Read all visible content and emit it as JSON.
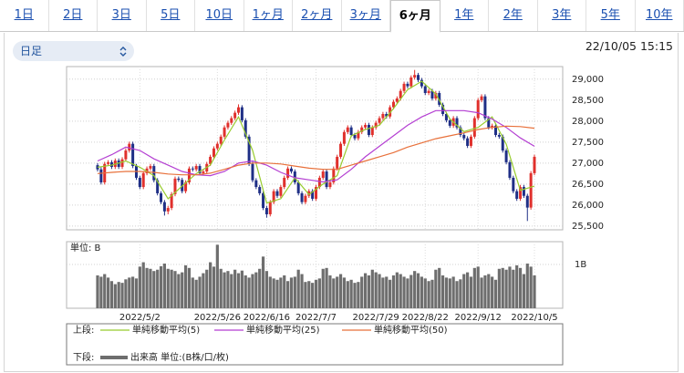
{
  "tabs": {
    "items": [
      "1日",
      "2日",
      "3日",
      "5日",
      "10日",
      "1ヶ月",
      "2ヶ月",
      "3ヶ月",
      "6ヶ月",
      "1年",
      "2年",
      "3年",
      "5年",
      "10年"
    ],
    "active": 8
  },
  "interval_select": "日足",
  "timestamp": "22/10/05 15:15",
  "chart_data": [
    {
      "type": "candlestick",
      "legend_title": "上段:",
      "grid": true,
      "up_color": "#e0302c",
      "down_color": "#1f2f86",
      "ylim": [
        25410,
        29300
      ],
      "yticks": [
        {
          "value": 25500,
          "label": "25,500"
        },
        {
          "value": 26000,
          "label": "26,000"
        },
        {
          "value": 26500,
          "label": "26,500"
        },
        {
          "value": 27000,
          "label": "27,000"
        },
        {
          "value": 27500,
          "label": "27,500"
        },
        {
          "value": 28000,
          "label": "28,000"
        },
        {
          "value": 28500,
          "label": "28,500"
        },
        {
          "value": 29000,
          "label": "29,000"
        }
      ],
      "categories": [
        null,
        null,
        null,
        null,
        null,
        null,
        null,
        null,
        null,
        null,
        null,
        null,
        "2022/5/2",
        null,
        null,
        null,
        null,
        null,
        null,
        null,
        null,
        null,
        null,
        null,
        null,
        null,
        null,
        null,
        null,
        null,
        null,
        null,
        null,
        null,
        "2022/5/26",
        null,
        null,
        null,
        null,
        null,
        null,
        null,
        null,
        null,
        null,
        null,
        null,
        null,
        "2022/6/16",
        null,
        null,
        null,
        null,
        null,
        null,
        null,
        null,
        null,
        null,
        null,
        null,
        null,
        "2022/7/7",
        null,
        null,
        null,
        null,
        null,
        null,
        null,
        null,
        null,
        null,
        null,
        null,
        null,
        null,
        null,
        null,
        "2022/7/29",
        null,
        null,
        null,
        null,
        null,
        null,
        null,
        null,
        null,
        null,
        null,
        null,
        null,
        "2022/8/22",
        null,
        null,
        null,
        null,
        null,
        null,
        null,
        null,
        null,
        null,
        null,
        null,
        null,
        null,
        "2022/9/12",
        null,
        null,
        null,
        null,
        null,
        null,
        null,
        null,
        null,
        null,
        null,
        null,
        null,
        null,
        null,
        "2022/10/5"
      ],
      "open": [
        26950,
        26850,
        26540,
        26980,
        27020,
        26910,
        27060,
        26910,
        27090,
        27300,
        27460,
        26930,
        26650,
        26430,
        26760,
        26870,
        26930,
        26590,
        26280,
        26070,
        25850,
        25930,
        26260,
        26630,
        26600,
        26330,
        26540,
        26870,
        26850,
        26930,
        26760,
        26800,
        26980,
        27150,
        27350,
        27460,
        27630,
        27850,
        27960,
        28070,
        28200,
        28330,
        28020,
        27630,
        26980,
        26590,
        26430,
        26280,
        25930,
        25780,
        26070,
        26330,
        26220,
        26430,
        26650,
        26870,
        26800,
        26540,
        26280,
        26070,
        26220,
        26330,
        26150,
        26430,
        26650,
        26800,
        26430,
        26540,
        26870,
        27150,
        27460,
        27740,
        27850,
        27670,
        27590,
        27740,
        27850,
        27910,
        27670,
        27850,
        27960,
        28070,
        28170,
        28110,
        28330,
        28460,
        28540,
        28720,
        28890,
        28830,
        29040,
        29100,
        28980,
        28830,
        28670,
        28720,
        28540,
        28670,
        28390,
        28170,
        28020,
        27890,
        28070,
        27850,
        27670,
        27590,
        27410,
        27630,
        28070,
        28500,
        28590,
        28070,
        27850,
        27890,
        27670,
        27630,
        27300,
        27020,
        26650,
        26330,
        26150,
        26430,
        26220,
        25940,
        26760
      ],
      "high": [
        27000,
        26900,
        27030,
        27070,
        27070,
        27110,
        27110,
        27140,
        27350,
        27510,
        27510,
        26980,
        26700,
        26810,
        26920,
        26980,
        26980,
        26640,
        26330,
        26120,
        25980,
        26310,
        26680,
        26680,
        26650,
        26590,
        26920,
        26920,
        26980,
        26980,
        26850,
        27030,
        27200,
        27400,
        27510,
        27680,
        27900,
        28010,
        28120,
        28250,
        28400,
        28380,
        28070,
        27680,
        27030,
        26640,
        26480,
        26330,
        25980,
        26120,
        26380,
        26380,
        26480,
        26700,
        26920,
        26920,
        26850,
        26590,
        26330,
        26270,
        26380,
        26380,
        26480,
        26700,
        26850,
        26850,
        26590,
        26920,
        27200,
        27510,
        27790,
        27900,
        27900,
        27720,
        27790,
        27900,
        27960,
        27960,
        27900,
        28010,
        28120,
        28220,
        28220,
        28380,
        28510,
        28590,
        28770,
        28940,
        28940,
        29090,
        29220,
        29150,
        29030,
        28880,
        28770,
        28770,
        28720,
        28720,
        28440,
        28220,
        28070,
        28120,
        28120,
        27900,
        27720,
        27640,
        27680,
        28120,
        28550,
        28640,
        28640,
        28120,
        27940,
        27940,
        27720,
        27680,
        27350,
        27070,
        26700,
        26380,
        26480,
        26480,
        26270,
        26810,
        27200
      ],
      "low": [
        26800,
        26490,
        26490,
        26930,
        26860,
        26860,
        26860,
        26860,
        27040,
        27250,
        26880,
        26600,
        26380,
        26380,
        26710,
        26820,
        26540,
        26230,
        26020,
        25750,
        25780,
        25880,
        26210,
        26550,
        26280,
        26280,
        26490,
        26800,
        26800,
        26710,
        26710,
        26750,
        26930,
        27100,
        27300,
        27410,
        27580,
        27800,
        27910,
        28020,
        28150,
        27970,
        27580,
        26930,
        26540,
        26380,
        26230,
        25880,
        25700,
        25730,
        26020,
        26170,
        26170,
        26380,
        26600,
        26750,
        26490,
        26230,
        26020,
        26020,
        26170,
        26100,
        26100,
        26380,
        26600,
        26380,
        26380,
        26490,
        26820,
        27100,
        27410,
        27690,
        27620,
        27540,
        27540,
        27690,
        27800,
        27620,
        27620,
        27800,
        27910,
        28020,
        28060,
        28060,
        28280,
        28410,
        28490,
        28670,
        28780,
        28780,
        28990,
        28930,
        28780,
        28620,
        28620,
        28490,
        28490,
        28340,
        28120,
        27970,
        27840,
        27840,
        27800,
        27620,
        27540,
        27360,
        27360,
        27580,
        28020,
        28450,
        28020,
        27800,
        27800,
        27620,
        27580,
        27250,
        26970,
        26600,
        26280,
        26100,
        26100,
        26170,
        25620,
        25890,
        26710
      ],
      "close": [
        26850,
        26540,
        26980,
        27020,
        26910,
        27060,
        26910,
        27090,
        27300,
        27460,
        26930,
        26650,
        26430,
        26760,
        26870,
        26930,
        26590,
        26280,
        26070,
        25850,
        25930,
        26260,
        26630,
        26600,
        26330,
        26540,
        26870,
        26850,
        26930,
        26760,
        26800,
        26980,
        27150,
        27350,
        27460,
        27630,
        27850,
        27960,
        28070,
        28200,
        28330,
        28020,
        27630,
        26980,
        26590,
        26430,
        26280,
        25930,
        25780,
        26070,
        26330,
        26220,
        26430,
        26650,
        26870,
        26800,
        26540,
        26280,
        26070,
        26220,
        26330,
        26150,
        26430,
        26650,
        26800,
        26430,
        26540,
        26870,
        27150,
        27460,
        27740,
        27850,
        27670,
        27590,
        27740,
        27850,
        27910,
        27670,
        27850,
        27960,
        28070,
        28170,
        28110,
        28330,
        28460,
        28540,
        28720,
        28890,
        28830,
        29040,
        29100,
        28980,
        28830,
        28670,
        28720,
        28540,
        28670,
        28390,
        28170,
        28020,
        27890,
        28070,
        27850,
        27670,
        27590,
        27410,
        27630,
        28070,
        28500,
        28590,
        28070,
        27850,
        27890,
        27670,
        27630,
        27300,
        27020,
        26650,
        26330,
        26150,
        26430,
        26220,
        25940,
        26760,
        27150
      ],
      "series": [
        {
          "name": "単純移動平均(5)",
          "color": "#98cc2e",
          "x": [
            0,
            4,
            8,
            12,
            16,
            20,
            24,
            28,
            32,
            36,
            40,
            44,
            48,
            52,
            56,
            60,
            64,
            68,
            72,
            76,
            80,
            84,
            88,
            92,
            96,
            100,
            104,
            108,
            112,
            116,
            120,
            124
          ],
          "values": [
            26900,
            26950,
            27050,
            26900,
            26700,
            26150,
            26450,
            26750,
            26950,
            27550,
            28100,
            27300,
            26050,
            26150,
            26650,
            26250,
            26500,
            26700,
            27650,
            27800,
            27900,
            28300,
            28750,
            28950,
            28650,
            28050,
            27750,
            27850,
            28100,
            27450,
            26350,
            26450
          ]
        },
        {
          "name": "単純移動平均(25)",
          "color": "#b43fd2",
          "x": [
            0,
            4,
            8,
            12,
            16,
            20,
            24,
            28,
            32,
            36,
            40,
            44,
            48,
            52,
            56,
            60,
            64,
            68,
            72,
            76,
            80,
            84,
            88,
            92,
            96,
            100,
            104,
            108,
            112,
            116,
            120,
            124
          ],
          "values": [
            27050,
            27200,
            27380,
            27300,
            27100,
            26950,
            26800,
            26720,
            26700,
            26800,
            27000,
            27050,
            26950,
            26780,
            26650,
            26600,
            26550,
            26600,
            26850,
            27150,
            27400,
            27650,
            27900,
            28100,
            28250,
            28250,
            28250,
            28200,
            28050,
            27850,
            27600,
            27400
          ]
        },
        {
          "name": "単純移動平均(50)",
          "color": "#e8703a",
          "x": [
            0,
            4,
            8,
            12,
            16,
            20,
            24,
            28,
            32,
            36,
            40,
            44,
            48,
            52,
            56,
            60,
            64,
            68,
            72,
            76,
            80,
            84,
            88,
            92,
            96,
            100,
            104,
            108,
            112,
            116,
            120,
            124
          ],
          "values": [
            26750,
            26780,
            26800,
            26800,
            26780,
            26740,
            26720,
            26720,
            26760,
            26850,
            26950,
            27000,
            27000,
            26980,
            26930,
            26880,
            26850,
            26850,
            26950,
            27050,
            27150,
            27250,
            27380,
            27480,
            27580,
            27650,
            27720,
            27800,
            27850,
            27880,
            27870,
            27830
          ]
        }
      ]
    },
    {
      "type": "bar",
      "legend_title": "下段:",
      "name": "出来高 単位:(B株/口/枚)",
      "axis_label": "単位: B",
      "color": "#6e6e6e",
      "ylim": [
        0,
        1.52
      ],
      "yticks": [
        {
          "value": 1,
          "label": "1B"
        }
      ],
      "values": [
        0.75,
        0.72,
        0.78,
        0.7,
        0.62,
        0.55,
        0.6,
        0.58,
        0.66,
        0.7,
        0.72,
        0.68,
        0.95,
        1.05,
        0.92,
        0.9,
        0.85,
        0.88,
        0.96,
        1.02,
        0.9,
        0.88,
        0.85,
        0.78,
        0.82,
        0.98,
        0.92,
        0.7,
        0.65,
        0.72,
        0.8,
        0.88,
        1.05,
        0.95,
        1.45,
        0.9,
        0.82,
        0.85,
        0.78,
        0.88,
        0.8,
        0.86,
        0.75,
        0.7,
        0.78,
        0.82,
        0.9,
        1.18,
        0.85,
        0.72,
        0.68,
        0.65,
        0.7,
        0.75,
        0.62,
        0.7,
        0.72,
        0.88,
        0.78,
        0.6,
        0.62,
        0.58,
        0.65,
        0.68,
        0.9,
        0.92,
        0.75,
        0.68,
        0.72,
        0.78,
        0.7,
        0.62,
        0.65,
        0.58,
        0.6,
        0.72,
        0.8,
        0.75,
        0.88,
        0.82,
        0.78,
        0.7,
        0.72,
        0.65,
        0.75,
        0.82,
        0.78,
        0.72,
        0.68,
        0.76,
        0.85,
        0.8,
        0.72,
        0.68,
        0.62,
        0.65,
        0.88,
        0.92,
        0.75,
        0.7,
        0.68,
        0.72,
        0.62,
        0.66,
        0.78,
        0.82,
        0.72,
        0.92,
        0.95,
        0.7,
        0.75,
        0.78,
        0.72,
        0.65,
        0.9,
        0.92,
        0.88,
        0.95,
        0.88,
        0.98,
        0.92,
        0.78,
        1.02,
        0.95,
        0.75
      ]
    }
  ]
}
